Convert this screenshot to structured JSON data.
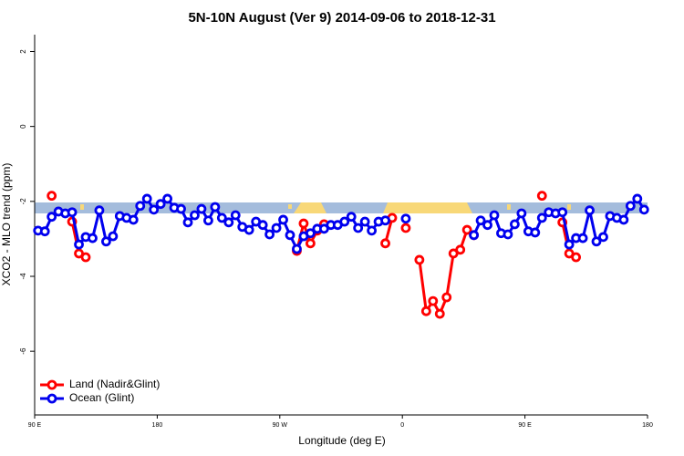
{
  "chart_data": {
    "type": "line",
    "title": "5N-10N August (Ver 9)   2014-09-06 to 2018-12-31",
    "x_label": "Longitude (deg E)",
    "y_label": "XCO2 - MLO trend (ppm)",
    "xlim": [
      90,
      540
    ],
    "ylim": [
      -7.7,
      2.45
    ],
    "xticks": [
      {
        "value": 90,
        "label": "90 E"
      },
      180,
      {
        "value": 270,
        "label": "90 W"
      },
      {
        "value": 360,
        "label": "0"
      },
      {
        "value": 450,
        "label": "90 E"
      },
      {
        "value": 540,
        "label": "180"
      }
    ],
    "yticks": [
      2,
      0,
      -2,
      -4,
      -6
    ],
    "legend": "bottom-left",
    "series": [
      {
        "name": "Land (Nadir&Glint)",
        "color": "#ff0000",
        "x": [
          102.5,
          107.5,
          117.5,
          122.5,
          127.5,
          132.5,
          282.5,
          287.5,
          292.5,
          297.5,
          302.5,
          307.5,
          347.5,
          352.5,
          357.5,
          362.5,
          367.5,
          372.5,
          377.5,
          382.5,
          387.5,
          392.5,
          397.5,
          402.5,
          407.5,
          412.5,
          417.5,
          462.5,
          467.5,
          477.5,
          482.5,
          487.5
        ],
        "values": [
          -1.85,
          null,
          -2.54,
          -3.39,
          -3.49,
          null,
          -3.32,
          -2.59,
          -3.12,
          -2.78,
          -2.61,
          null,
          -3.12,
          -2.44,
          null,
          -2.71,
          null,
          -3.56,
          -4.93,
          -4.66,
          -5.0,
          -4.56,
          -3.39,
          -3.29,
          -2.76,
          -2.9,
          null,
          -1.85,
          null,
          -2.56,
          -3.39,
          -3.49
        ]
      },
      {
        "name": "Ocean (Glint)",
        "color": "#0000ee",
        "x": [
          92.5,
          97.5,
          102.5,
          107.5,
          112.5,
          117.5,
          122.5,
          127.5,
          132.5,
          137.5,
          142.5,
          147.5,
          152.5,
          157.5,
          162.5,
          167.5,
          172.5,
          177.5,
          182.5,
          187.5,
          192.5,
          197.5,
          202.5,
          207.5,
          212.5,
          217.5,
          222.5,
          227.5,
          232.5,
          237.5,
          242.5,
          247.5,
          252.5,
          257.5,
          262.5,
          267.5,
          272.5,
          277.5,
          282.5,
          287.5,
          292.5,
          297.5,
          302.5,
          307.5,
          312.5,
          317.5,
          322.5,
          327.5,
          332.5,
          337.5,
          342.5,
          347.5,
          352.5,
          362.5,
          367.5,
          412.5,
          417.5,
          422.5,
          427.5,
          432.5,
          437.5,
          442.5,
          447.5,
          452.5,
          457.5,
          462.5,
          467.5,
          472.5,
          477.5,
          482.5,
          487.5,
          492.5,
          497.5,
          502.5,
          507.5,
          512.5,
          517.5,
          522.5,
          527.5,
          532.5,
          537.5
        ],
        "values": [
          -2.78,
          -2.8,
          -2.41,
          -2.27,
          -2.32,
          -2.29,
          -3.15,
          -2.95,
          -2.98,
          -2.24,
          -3.07,
          -2.93,
          -2.39,
          -2.44,
          -2.49,
          -2.12,
          -1.93,
          -2.22,
          -2.07,
          -1.93,
          -2.17,
          -2.2,
          -2.56,
          -2.37,
          -2.2,
          -2.51,
          -2.15,
          -2.44,
          -2.56,
          -2.37,
          -2.68,
          -2.76,
          -2.54,
          -2.63,
          -2.88,
          -2.71,
          -2.49,
          -2.9,
          -3.27,
          -2.93,
          -2.85,
          -2.73,
          -2.73,
          -2.63,
          -2.63,
          -2.54,
          -2.41,
          -2.71,
          -2.54,
          -2.78,
          -2.54,
          -2.51,
          null,
          -2.46,
          null,
          -2.9,
          -2.51,
          -2.63,
          -2.37,
          -2.85,
          -2.88,
          -2.61,
          -2.32,
          -2.8,
          -2.83,
          -2.44,
          -2.29,
          -2.32,
          -2.29,
          -3.15,
          -2.98,
          -2.98,
          -2.24,
          -3.07,
          -2.95,
          -2.39,
          -2.44,
          -2.49,
          -2.12,
          -1.93,
          -2.22
        ]
      }
    ]
  }
}
